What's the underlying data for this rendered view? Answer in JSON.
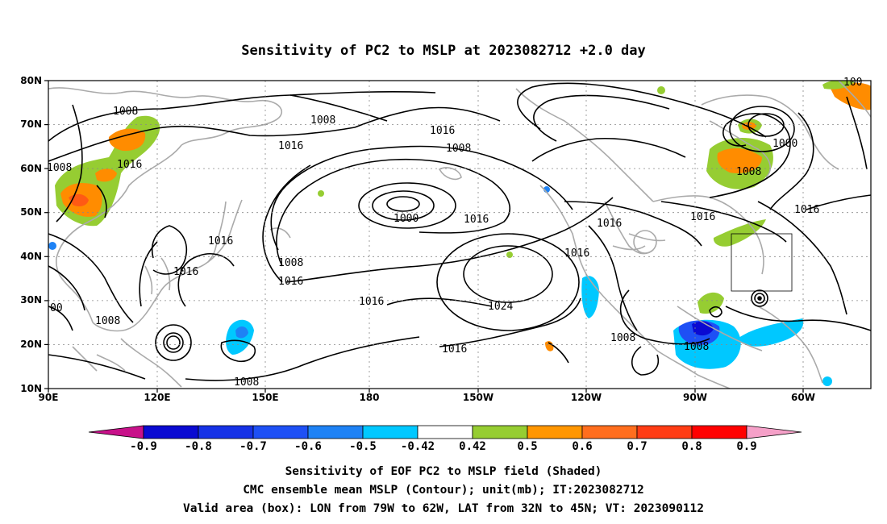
{
  "title": "Sensitivity of PC2 to MSLP at 2023082712 +2.0 day",
  "map": {
    "lat_labels": [
      "80N",
      "70N",
      "60N",
      "50N",
      "40N",
      "30N",
      "20N",
      "10N"
    ],
    "lon_labels": [
      "90E",
      "120E",
      "150E",
      "180",
      "150W",
      "120W",
      "90W",
      "60W"
    ],
    "lon_range": [
      "90E",
      "47W"
    ],
    "lat_range": [
      "10N",
      "80N"
    ],
    "gridlines": "dotted",
    "coastline_color": "#aaaaaa",
    "contour_color": "#000000",
    "contour_labels": [
      "1008",
      "1008",
      "1016",
      "1016",
      "1016",
      "1008",
      "1016",
      "1016",
      "1000",
      "1016",
      "1008",
      "1016",
      "1008",
      "1016",
      "1024",
      "1016",
      "1016",
      "1008",
      "1016",
      "1008",
      "1016",
      "1000",
      "1008",
      "1016",
      "1008",
      "00",
      "1008",
      "1008",
      "100"
    ],
    "valid_box": {
      "lon": [
        "79W",
        "62W"
      ],
      "lat": [
        "32N",
        "45N"
      ]
    }
  },
  "colorbar": {
    "tick_labels": [
      "-0.9",
      "-0.8",
      "-0.7",
      "-0.6",
      "-0.5",
      "-0.42",
      "0.42",
      "0.5",
      "0.6",
      "0.7",
      "0.8",
      "0.9"
    ],
    "colors": [
      "#c8118a",
      "#0a0ad2",
      "#1632e6",
      "#1e50f5",
      "#1e82f5",
      "#00c8ff",
      "#ffffff",
      "#96cd32",
      "#ff9600",
      "#ff6e1e",
      "#ff3c14",
      "#ff0000",
      "#f5a0c8"
    ]
  },
  "caption": {
    "line1": "Sensitivity of EOF PC2 to MSLP field (Shaded)",
    "line2": "CMC ensemble mean MSLP (Contour); unit(mb); IT:2023082712",
    "line3": "Valid area (box): LON from 79W to 62W, LAT from 32N to 45N; VT: 2023090112"
  }
}
